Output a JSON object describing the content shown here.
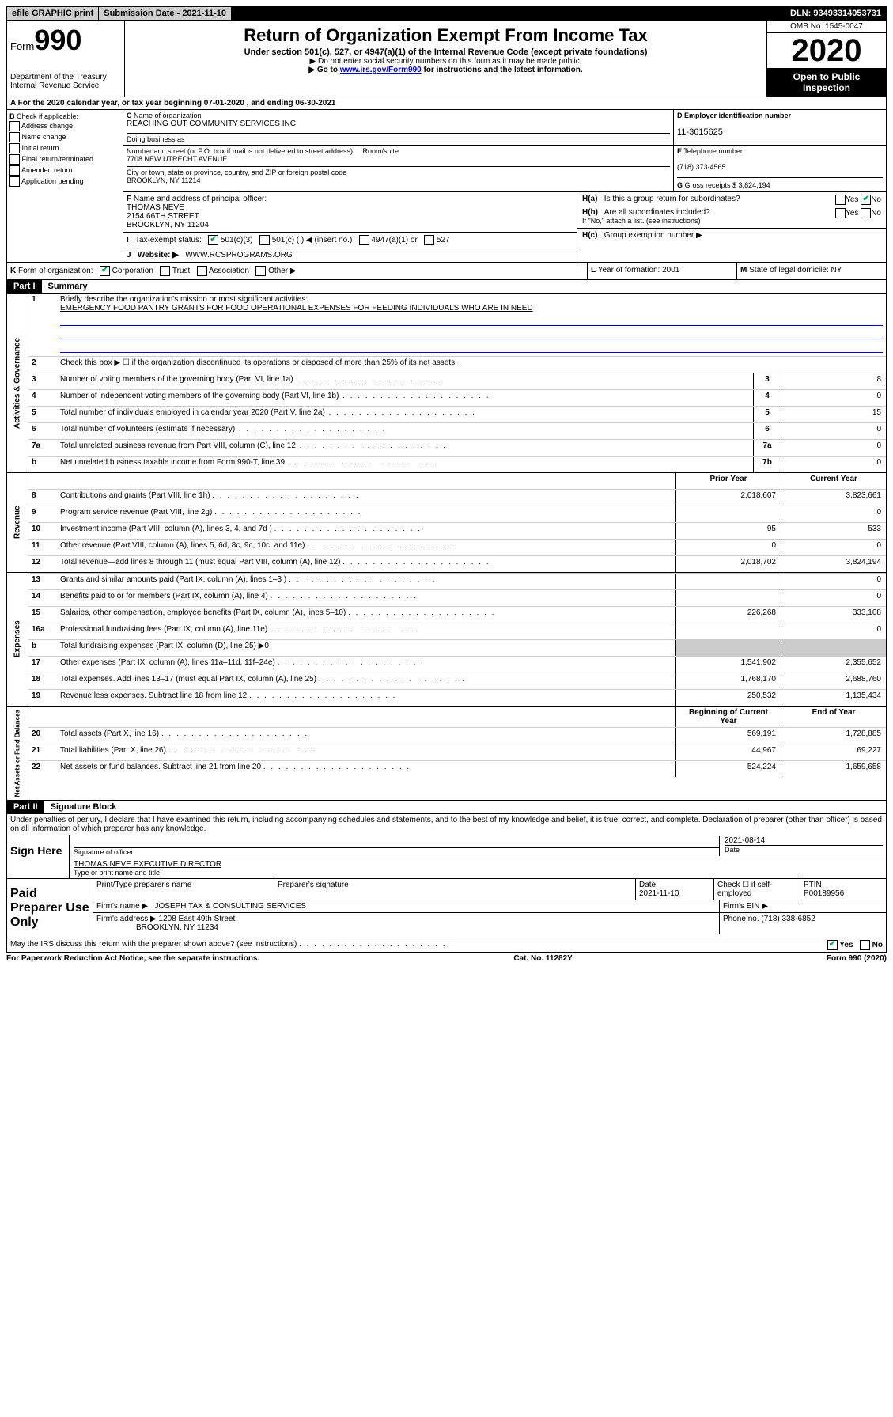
{
  "top": {
    "efile": "efile GRAPHIC print",
    "submission": "Submission Date - 2021-11-10",
    "dln": "DLN: 93493314053731"
  },
  "header": {
    "form_word": "Form",
    "form_num": "990",
    "dept": "Department of the Treasury\nInternal Revenue Service",
    "title": "Return of Organization Exempt From Income Tax",
    "subtitle": "Under section 501(c), 527, or 4947(a)(1) of the Internal Revenue Code (except private foundations)",
    "note1": "▶ Do not enter social security numbers on this form as it may be made public.",
    "note2_pre": "▶ Go to ",
    "note2_link": "www.irs.gov/Form990",
    "note2_post": " for instructions and the latest information.",
    "omb": "OMB No. 1545-0047",
    "year": "2020",
    "open": "Open to Public Inspection"
  },
  "A": {
    "text": "For the 2020 calendar year, or tax year beginning 07-01-2020     , and ending 06-30-2021"
  },
  "B": {
    "label": "Check if applicable:",
    "opts": [
      "Address change",
      "Name change",
      "Initial return",
      "Final return/terminated",
      "Amended return",
      "Application pending"
    ]
  },
  "C": {
    "name_label": "Name of organization",
    "name": "REACHING OUT COMMUNITY SERVICES INC",
    "dba_label": "Doing business as",
    "addr_label": "Number and street (or P.O. box if mail is not delivered to street address)",
    "addr": "7708 NEW UTRECHT AVENUE",
    "room_label": "Room/suite",
    "city_label": "City or town, state or province, country, and ZIP or foreign postal code",
    "city": "BROOKLYN, NY  11214"
  },
  "D": {
    "label": "Employer identification number",
    "val": "11-3615625"
  },
  "E": {
    "label": "Telephone number",
    "val": "(718) 373-4565"
  },
  "G": {
    "label": "Gross receipts $",
    "val": "3,824,194"
  },
  "F": {
    "label": "Name and address of principal officer:",
    "name": "THOMAS NEVE",
    "addr1": "2154 66TH STREET",
    "addr2": "BROOKLYN, NY  11204"
  },
  "H": {
    "a": "Is this a group return for subordinates?",
    "b": "Are all subordinates included?",
    "b_note": "If \"No,\" attach a list. (see instructions)",
    "c": "Group exemption number ▶"
  },
  "I": {
    "label": "Tax-exempt status:",
    "o1": "501(c)(3)",
    "o2": "501(c) (   ) ◀ (insert no.)",
    "o3": "4947(a)(1) or",
    "o4": "527"
  },
  "J": {
    "label": "Website: ▶",
    "val": "WWW.RCSPROGRAMS.ORG"
  },
  "K": {
    "label": "Form of organization:",
    "opts": [
      "Corporation",
      "Trust",
      "Association",
      "Other ▶"
    ]
  },
  "L": {
    "label": "Year of formation:",
    "val": "2001"
  },
  "M": {
    "label": "State of legal domicile:",
    "val": "NY"
  },
  "part1": {
    "tag": "Part I",
    "title": "Summary"
  },
  "mission": {
    "label": "Briefly describe the organization's mission or most significant activities:",
    "text": "EMERGENCY FOOD PANTRY GRANTS FOR FOOD OPERATIONAL EXPENSES FOR FEEDING INDIVIDUALS WHO ARE IN NEED"
  },
  "lines_gov": [
    {
      "n": "2",
      "t": "Check this box ▶ ☐  if the organization discontinued its operations or disposed of more than 25% of its net assets."
    },
    {
      "n": "3",
      "t": "Number of voting members of the governing body (Part VI, line 1a)",
      "box": "3",
      "v": "8"
    },
    {
      "n": "4",
      "t": "Number of independent voting members of the governing body (Part VI, line 1b)",
      "box": "4",
      "v": "0"
    },
    {
      "n": "5",
      "t": "Total number of individuals employed in calendar year 2020 (Part V, line 2a)",
      "box": "5",
      "v": "15"
    },
    {
      "n": "6",
      "t": "Total number of volunteers (estimate if necessary)",
      "box": "6",
      "v": "0"
    },
    {
      "n": "7a",
      "t": "Total unrelated business revenue from Part VIII, column (C), line 12",
      "box": "7a",
      "v": "0"
    },
    {
      "n": "b",
      "t": "Net unrelated business taxable income from Form 990-T, line 39",
      "box": "7b",
      "v": "0"
    }
  ],
  "col_headers": {
    "prior": "Prior Year",
    "current": "Current Year",
    "beg": "Beginning of Current Year",
    "end": "End of Year"
  },
  "revenue": [
    {
      "n": "8",
      "t": "Contributions and grants (Part VIII, line 1h)",
      "p": "2,018,607",
      "c": "3,823,661"
    },
    {
      "n": "9",
      "t": "Program service revenue (Part VIII, line 2g)",
      "p": "",
      "c": "0"
    },
    {
      "n": "10",
      "t": "Investment income (Part VIII, column (A), lines 3, 4, and 7d )",
      "p": "95",
      "c": "533"
    },
    {
      "n": "11",
      "t": "Other revenue (Part VIII, column (A), lines 5, 6d, 8c, 9c, 10c, and 11e)",
      "p": "0",
      "c": "0"
    },
    {
      "n": "12",
      "t": "Total revenue—add lines 8 through 11 (must equal Part VIII, column (A), line 12)",
      "p": "2,018,702",
      "c": "3,824,194"
    }
  ],
  "expenses": [
    {
      "n": "13",
      "t": "Grants and similar amounts paid (Part IX, column (A), lines 1–3 )",
      "p": "",
      "c": "0"
    },
    {
      "n": "14",
      "t": "Benefits paid to or for members (Part IX, column (A), line 4)",
      "p": "",
      "c": "0"
    },
    {
      "n": "15",
      "t": "Salaries, other compensation, employee benefits (Part IX, column (A), lines 5–10)",
      "p": "226,268",
      "c": "333,108"
    },
    {
      "n": "16a",
      "t": "Professional fundraising fees (Part IX, column (A), line 11e)",
      "p": "",
      "c": "0"
    },
    {
      "n": "b",
      "t": "Total fundraising expenses (Part IX, column (D), line 25) ▶0",
      "p": null,
      "c": null
    },
    {
      "n": "17",
      "t": "Other expenses (Part IX, column (A), lines 11a–11d, 11f–24e)",
      "p": "1,541,902",
      "c": "2,355,652"
    },
    {
      "n": "18",
      "t": "Total expenses. Add lines 13–17 (must equal Part IX, column (A), line 25)",
      "p": "1,768,170",
      "c": "2,688,760"
    },
    {
      "n": "19",
      "t": "Revenue less expenses. Subtract line 18 from line 12",
      "p": "250,532",
      "c": "1,135,434"
    }
  ],
  "netassets": [
    {
      "n": "20",
      "t": "Total assets (Part X, line 16)",
      "p": "569,191",
      "c": "1,728,885"
    },
    {
      "n": "21",
      "t": "Total liabilities (Part X, line 26)",
      "p": "44,967",
      "c": "69,227"
    },
    {
      "n": "22",
      "t": "Net assets or fund balances. Subtract line 21 from line 20",
      "p": "524,224",
      "c": "1,659,658"
    }
  ],
  "part2": {
    "tag": "Part II",
    "title": "Signature Block"
  },
  "perjury": "Under penalties of perjury, I declare that I have examined this return, including accompanying schedules and statements, and to the best of my knowledge and belief, it is true, correct, and complete. Declaration of preparer (other than officer) is based on all information of which preparer has any knowledge.",
  "sign": {
    "here": "Sign Here",
    "sig_label": "Signature of officer",
    "date": "2021-08-14",
    "date_label": "Date",
    "name": "THOMAS NEVE  EXECUTIVE DIRECTOR",
    "name_label": "Type or print name and title"
  },
  "prep": {
    "label": "Paid Preparer Use Only",
    "h1": "Print/Type preparer's name",
    "h2": "Preparer's signature",
    "h3": "Date",
    "date": "2021-11-10",
    "h4": "Check ☐ if self-employed",
    "h5": "PTIN",
    "ptin": "P00189956",
    "firm_label": "Firm's name    ▶",
    "firm": "JOSEPH TAX & CONSULTING SERVICES",
    "ein_label": "Firm's EIN ▶",
    "addr_label": "Firm's address ▶",
    "addr1": "1208 East 49th Street",
    "addr2": "BROOKLYN, NY  11234",
    "phone_label": "Phone no.",
    "phone": "(718) 338-6852"
  },
  "discuss": "May the IRS discuss this return with the preparer shown above? (see instructions)",
  "footer": {
    "pra": "For Paperwork Reduction Act Notice, see the separate instructions.",
    "cat": "Cat. No. 11282Y",
    "form": "Form 990 (2020)"
  },
  "side_labels": {
    "gov": "Activities & Governance",
    "rev": "Revenue",
    "exp": "Expenses",
    "net": "Net Assets or Fund Balances"
  }
}
